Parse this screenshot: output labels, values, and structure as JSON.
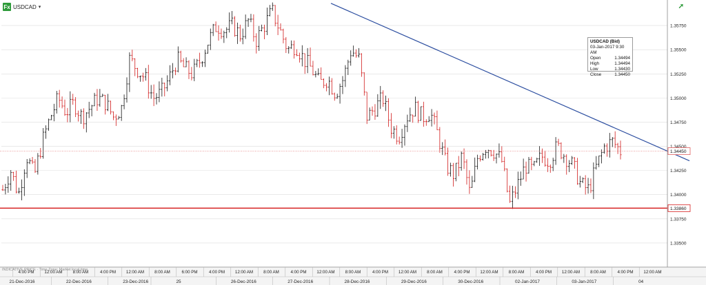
{
  "header": {
    "symbol": "USDCAD",
    "fx_label": "Fx"
  },
  "footnote": "INDICATIVE PRICE · Time Zone: Market local time",
  "infobox": {
    "title": "USDCAD (Bid)",
    "datetime": "03-Jan-2017 9:30 AM",
    "rows": [
      {
        "label": "Open",
        "value": "1.34494"
      },
      {
        "label": "High",
        "value": "1.34494"
      },
      {
        "label": "Low",
        "value": "1.34430"
      },
      {
        "label": "Close",
        "value": "1.34450"
      }
    ]
  },
  "colors": {
    "up": "#111111",
    "down": "#d11a1a",
    "trendline": "#2c4ea0",
    "support": "#d62020",
    "current": "#e06060",
    "grid": "#dcdcdc"
  },
  "chart_data": {
    "type": "candlestick",
    "y_axis": {
      "min": 1.3325,
      "max": 1.36,
      "position": "right",
      "ticks": [
        1.335,
        1.3375,
        1.34,
        1.3425,
        1.345,
        1.3475,
        1.35,
        1.3525,
        1.355,
        1.3575
      ],
      "tick_labels": [
        "1.33500",
        "1.33750",
        "1.34000",
        "1.34250",
        "1.34500",
        "1.34750",
        "1.35000",
        "1.35250",
        "1.35500",
        "1.35750"
      ]
    },
    "x_axis": {
      "time_labels": [
        "4:00 PM",
        "12:00 AM",
        "8:00 AM",
        "4:00 PM",
        "12:00 AM",
        "8:00 AM",
        "6:00 PM",
        "4:00 PM",
        "12:00 AM",
        "8:00 AM",
        "4:00 PM",
        "12:00 AM",
        "8:00 AM",
        "4:00 PM",
        "12:00 AM",
        "8:00 AM",
        "4:00 PM",
        "12:00 AM",
        "8:00 AM",
        "4:00 PM",
        "12:00 AM",
        "8:00 AM",
        "4:00 PM",
        "12:00 AM"
      ],
      "date_labels": [
        "21-Dec-2016",
        "22-Dec-2016",
        "23-Dec-2016",
        "25",
        "26-Dec-2016",
        "27-Dec-2016",
        "28-Dec-2016",
        "29-Dec-2016",
        "30-Dec-2016",
        "02-Jan-2017",
        "03-Jan-2017",
        "04"
      ]
    },
    "price_labels": {
      "current": "1.34450",
      "support": "1.33860"
    },
    "levels": {
      "current": 1.3445,
      "support": 1.3386
    },
    "trendline": {
      "from": {
        "date": "28-Dec-2016 12:00 AM",
        "price": 1.3598
      },
      "to": {
        "date": "04-Jan-2017",
        "price": 1.3435
      }
    },
    "series_path": [
      [
        1.3405,
        1.3425,
        1.34,
        1.344,
        1.342,
        1.3455,
        1.348,
        1.35,
        1.3485,
        1.3495,
        1.348,
        1.349,
        1.35,
        1.3495,
        1.348,
        1.349,
        1.354,
        1.353,
        1.352,
        1.35,
        1.3505,
        1.352,
        1.354,
        1.353,
        1.3525,
        1.354,
        1.356,
        1.3575,
        1.357,
        1.3575,
        1.3565,
        1.358,
        1.356,
        1.3575,
        1.359,
        1.357,
        1.355,
        1.3555,
        1.354,
        1.353,
        1.3515,
        1.352,
        1.3505,
        1.352,
        1.355,
        1.354,
        1.348,
        1.349,
        1.35,
        1.347,
        1.346,
        1.348,
        1.349,
        1.348,
        1.3485,
        1.346,
        1.343,
        1.342,
        1.344,
        1.34,
        1.344,
        1.345,
        1.3445,
        1.3435,
        1.339,
        1.341,
        1.343,
        1.3425,
        1.344,
        1.3435,
        1.345,
        1.344,
        1.343,
        1.341,
        1.3405,
        1.343,
        1.345,
        1.3455,
        1.3445
      ]
    ]
  }
}
